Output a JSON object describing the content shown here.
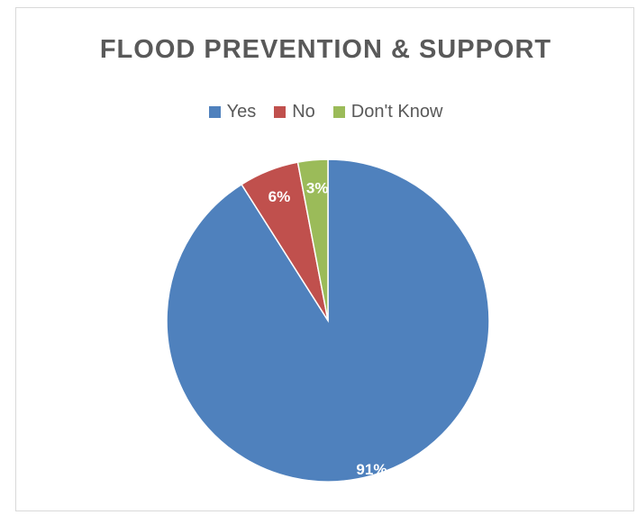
{
  "chart_data": {
    "type": "pie",
    "title": "FLOOD PREVENTION & SUPPORT",
    "categories": [
      "Yes",
      "No",
      "Don't Know"
    ],
    "values": [
      91,
      6,
      3
    ],
    "labels": [
      "91%",
      "6%",
      "3%"
    ],
    "colors": [
      "#4f81bd",
      "#c0504d",
      "#9bbb59"
    ],
    "legend_position": "top"
  }
}
